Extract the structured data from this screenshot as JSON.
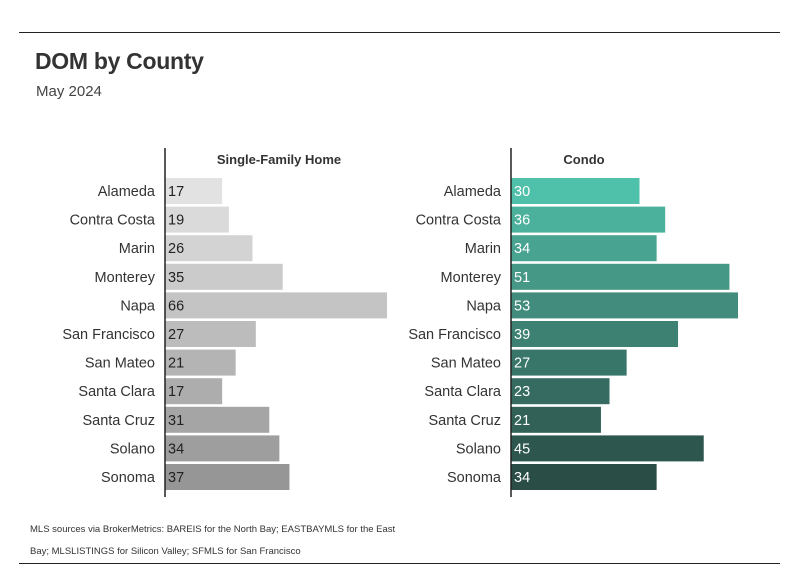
{
  "header": {
    "title": "DOM by County",
    "subtitle": "May 2024"
  },
  "footer": {
    "line1": "MLS sources via BrokerMetrics: BAREIS for the North Bay; EASTBAYMLS for the East",
    "line2": "Bay; MLSLISTINGS for Silicon Valley; SFMLS for San Francisco"
  },
  "chart_data": [
    {
      "type": "bar",
      "orientation": "horizontal",
      "title": "Single-Family Home",
      "categories": [
        "Alameda",
        "Contra Costa",
        "Marin",
        "Monterey",
        "Napa",
        "San Francisco",
        "San Mateo",
        "Santa Clara",
        "Santa Cruz",
        "Solano",
        "Sonoma"
      ],
      "values": [
        17,
        19,
        26,
        35,
        66,
        27,
        21,
        17,
        31,
        34,
        37
      ],
      "colors": [
        "#e2e2e2",
        "#dadada",
        "#d3d3d3",
        "#cbcbcb",
        "#c4c4c4",
        "#bcbcbc",
        "#b4b4b4",
        "#adadad",
        "#a5a5a5",
        "#9e9e9e",
        "#969696"
      ],
      "label_color": "#222222",
      "xlim": [
        0,
        66
      ]
    },
    {
      "type": "bar",
      "orientation": "horizontal",
      "title": "Condo",
      "categories": [
        "Alameda",
        "Contra Costa",
        "Marin",
        "Monterey",
        "Napa",
        "San Francisco",
        "San Mateo",
        "Santa Clara",
        "Santa Cruz",
        "Solano",
        "Sonoma"
      ],
      "values": [
        30,
        36,
        34,
        51,
        53,
        39,
        27,
        23,
        21,
        45,
        34
      ],
      "colors": [
        "#4fc0aa",
        "#4cb19c",
        "#48a491",
        "#459886",
        "#418c7c",
        "#3d8172",
        "#39766a",
        "#356b60",
        "#316157",
        "#2d574e",
        "#2a4e46"
      ],
      "label_color": "#ffffff",
      "xlim": [
        0,
        53
      ]
    }
  ]
}
